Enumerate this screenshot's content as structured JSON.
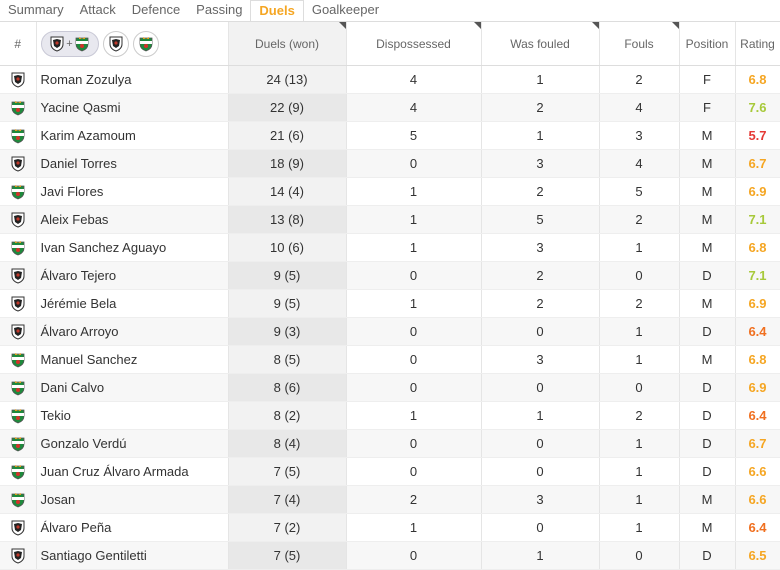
{
  "tabs": [
    {
      "label": "Summary",
      "active": false
    },
    {
      "label": "Attack",
      "active": false
    },
    {
      "label": "Defence",
      "active": false
    },
    {
      "label": "Passing",
      "active": false
    },
    {
      "label": "Duels",
      "active": true
    },
    {
      "label": "Goalkeeper",
      "active": false
    }
  ],
  "columns": {
    "index": "#",
    "duels": "Duels (won)",
    "dispossessed": "Dispossessed",
    "was_fouled": "Was fouled",
    "fouls": "Fouls",
    "position": "Position",
    "rating": "Rating"
  },
  "team_filter": {
    "plus": "+"
  },
  "rating_colors": {
    "orange": "#f5a623",
    "green": "#a7c93a",
    "red": "#e53935",
    "dark_orange": "#f07020"
  },
  "players": [
    {
      "team": "albacete",
      "name": "Roman Zozulya",
      "duels": "24 (13)",
      "dispossessed": "4",
      "was_fouled": "1",
      "fouls": "2",
      "position": "F",
      "rating": "6.8",
      "rating_color": "#f5a623"
    },
    {
      "team": "elche",
      "name": "Yacine Qasmi",
      "duels": "22 (9)",
      "dispossessed": "4",
      "was_fouled": "2",
      "fouls": "4",
      "position": "F",
      "rating": "7.6",
      "rating_color": "#a7c93a"
    },
    {
      "team": "elche",
      "name": "Karim Azamoum",
      "duels": "21 (6)",
      "dispossessed": "5",
      "was_fouled": "1",
      "fouls": "3",
      "position": "M",
      "rating": "5.7",
      "rating_color": "#e53935"
    },
    {
      "team": "albacete",
      "name": "Daniel Torres",
      "duels": "18 (9)",
      "dispossessed": "0",
      "was_fouled": "3",
      "fouls": "4",
      "position": "M",
      "rating": "6.7",
      "rating_color": "#f5a623"
    },
    {
      "team": "elche",
      "name": "Javi Flores",
      "duels": "14 (4)",
      "dispossessed": "1",
      "was_fouled": "2",
      "fouls": "5",
      "position": "M",
      "rating": "6.9",
      "rating_color": "#f5a623"
    },
    {
      "team": "albacete",
      "name": "Aleix Febas",
      "duels": "13 (8)",
      "dispossessed": "1",
      "was_fouled": "5",
      "fouls": "2",
      "position": "M",
      "rating": "7.1",
      "rating_color": "#a7c93a"
    },
    {
      "team": "elche",
      "name": "Ivan Sanchez Aguayo",
      "duels": "10 (6)",
      "dispossessed": "1",
      "was_fouled": "3",
      "fouls": "1",
      "position": "M",
      "rating": "6.8",
      "rating_color": "#f5a623"
    },
    {
      "team": "albacete",
      "name": "Álvaro Tejero",
      "duels": "9 (5)",
      "dispossessed": "0",
      "was_fouled": "2",
      "fouls": "0",
      "position": "D",
      "rating": "7.1",
      "rating_color": "#a7c93a"
    },
    {
      "team": "albacete",
      "name": "Jérémie Bela",
      "duels": "9 (5)",
      "dispossessed": "1",
      "was_fouled": "2",
      "fouls": "2",
      "position": "M",
      "rating": "6.9",
      "rating_color": "#f5a623"
    },
    {
      "team": "albacete",
      "name": "Álvaro Arroyo",
      "duels": "9 (3)",
      "dispossessed": "0",
      "was_fouled": "0",
      "fouls": "1",
      "position": "D",
      "rating": "6.4",
      "rating_color": "#f07020"
    },
    {
      "team": "elche",
      "name": "Manuel Sanchez",
      "duels": "8 (5)",
      "dispossessed": "0",
      "was_fouled": "3",
      "fouls": "1",
      "position": "M",
      "rating": "6.8",
      "rating_color": "#f5a623"
    },
    {
      "team": "elche",
      "name": "Dani Calvo",
      "duels": "8 (6)",
      "dispossessed": "0",
      "was_fouled": "0",
      "fouls": "0",
      "position": "D",
      "rating": "6.9",
      "rating_color": "#f5a623"
    },
    {
      "team": "elche",
      "name": "Tekio",
      "duels": "8 (2)",
      "dispossessed": "1",
      "was_fouled": "1",
      "fouls": "2",
      "position": "D",
      "rating": "6.4",
      "rating_color": "#f07020"
    },
    {
      "team": "elche",
      "name": "Gonzalo Verdú",
      "duels": "8 (4)",
      "dispossessed": "0",
      "was_fouled": "0",
      "fouls": "1",
      "position": "D",
      "rating": "6.7",
      "rating_color": "#f5a623"
    },
    {
      "team": "elche",
      "name": "Juan Cruz Álvaro Armada",
      "duels": "7 (5)",
      "dispossessed": "0",
      "was_fouled": "0",
      "fouls": "1",
      "position": "D",
      "rating": "6.6",
      "rating_color": "#f5a623"
    },
    {
      "team": "elche",
      "name": "Josan",
      "duels": "7 (4)",
      "dispossessed": "2",
      "was_fouled": "3",
      "fouls": "1",
      "position": "M",
      "rating": "6.6",
      "rating_color": "#f5a623"
    },
    {
      "team": "albacete",
      "name": "Álvaro Peña",
      "duels": "7 (2)",
      "dispossessed": "1",
      "was_fouled": "0",
      "fouls": "1",
      "position": "M",
      "rating": "6.4",
      "rating_color": "#f07020"
    },
    {
      "team": "albacete",
      "name": "Santiago Gentiletti",
      "duels": "7 (5)",
      "dispossessed": "0",
      "was_fouled": "1",
      "fouls": "0",
      "position": "D",
      "rating": "6.5",
      "rating_color": "#f5a623"
    }
  ]
}
